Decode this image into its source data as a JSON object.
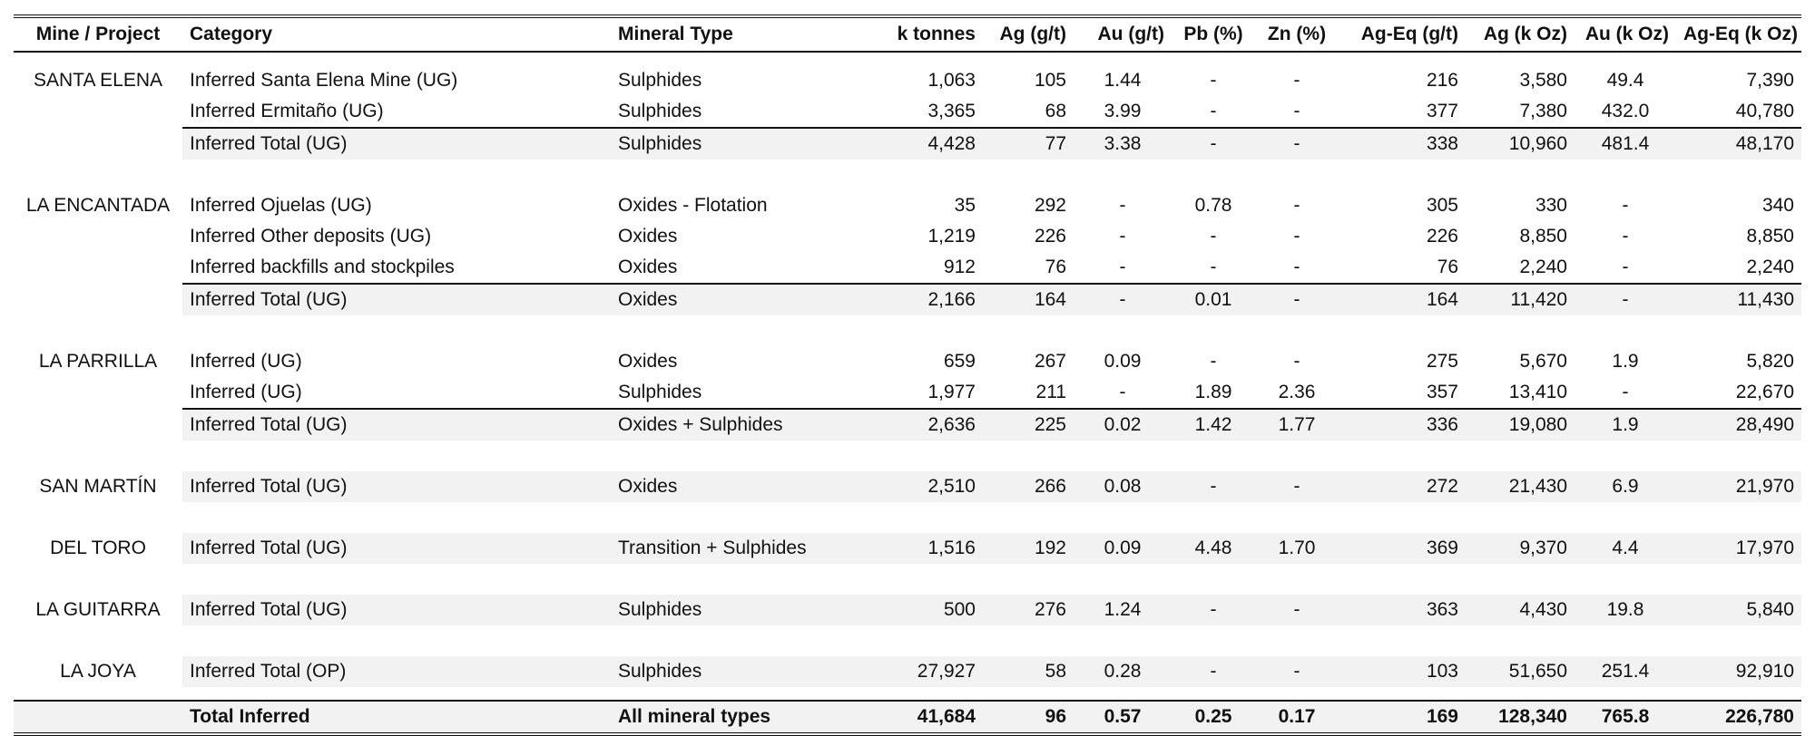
{
  "columns": [
    "Mine / Project",
    "Category",
    "Mineral Type",
    "k tonnes",
    "Ag (g/t)",
    "Au (g/t)",
    "Pb (%)",
    "Zn (%)",
    "Ag-Eq (g/t)",
    "Ag (k Oz)",
    "Au (k Oz)",
    "Ag-Eq (k Oz)"
  ],
  "rows": [
    {
      "mine": "SANTA ELENA",
      "category": "Inferred Santa Elena Mine (UG)",
      "mineral": "Sulphides",
      "ktonnes": "1,063",
      "ag_gt": "105",
      "au_gt": "1.44",
      "pb": "-",
      "zn": "-",
      "ageq_gt": "216",
      "ag_koz": "3,580",
      "au_koz": "49.4",
      "ageq_koz": "7,390"
    },
    {
      "mine": "",
      "category": "Inferred Ermitaño (UG)",
      "mineral": "Sulphides",
      "ktonnes": "3,365",
      "ag_gt": "68",
      "au_gt": "3.99",
      "pb": "-",
      "zn": "-",
      "ageq_gt": "377",
      "ag_koz": "7,380",
      "au_koz": "432.0",
      "ageq_koz": "40,780"
    },
    {
      "mine": "",
      "category": "Inferred Total (UG)",
      "mineral": "Sulphides",
      "ktonnes": "4,428",
      "ag_gt": "77",
      "au_gt": "3.38",
      "pb": "-",
      "zn": "-",
      "ageq_gt": "338",
      "ag_koz": "10,960",
      "au_koz": "481.4",
      "ageq_koz": "48,170"
    },
    {
      "mine": "LA ENCANTADA",
      "category": "Inferred Ojuelas (UG)",
      "mineral": "Oxides - Flotation",
      "ktonnes": "35",
      "ag_gt": "292",
      "au_gt": "-",
      "pb": "0.78",
      "zn": "-",
      "ageq_gt": "305",
      "ag_koz": "330",
      "au_koz": "-",
      "ageq_koz": "340"
    },
    {
      "mine": "",
      "category": "Inferred Other deposits (UG)",
      "mineral": "Oxides",
      "ktonnes": "1,219",
      "ag_gt": "226",
      "au_gt": "-",
      "pb": "-",
      "zn": "-",
      "ageq_gt": "226",
      "ag_koz": "8,850",
      "au_koz": "-",
      "ageq_koz": "8,850"
    },
    {
      "mine": "",
      "category": "Inferred backfills and stockpiles",
      "mineral": "Oxides",
      "ktonnes": "912",
      "ag_gt": "76",
      "au_gt": "-",
      "pb": "-",
      "zn": "-",
      "ageq_gt": "76",
      "ag_koz": "2,240",
      "au_koz": "-",
      "ageq_koz": "2,240"
    },
    {
      "mine": "",
      "category": "Inferred Total (UG)",
      "mineral": "Oxides",
      "ktonnes": "2,166",
      "ag_gt": "164",
      "au_gt": "-",
      "pb": "0.01",
      "zn": "-",
      "ageq_gt": "164",
      "ag_koz": "11,420",
      "au_koz": "-",
      "ageq_koz": "11,430"
    },
    {
      "mine": "LA PARRILLA",
      "category": "Inferred (UG)",
      "mineral": "Oxides",
      "ktonnes": "659",
      "ag_gt": "267",
      "au_gt": "0.09",
      "pb": "-",
      "zn": "-",
      "ageq_gt": "275",
      "ag_koz": "5,670",
      "au_koz": "1.9",
      "ageq_koz": "5,820"
    },
    {
      "mine": "",
      "category": "Inferred (UG)",
      "mineral": "Sulphides",
      "ktonnes": "1,977",
      "ag_gt": "211",
      "au_gt": "-",
      "pb": "1.89",
      "zn": "2.36",
      "ageq_gt": "357",
      "ag_koz": "13,410",
      "au_koz": "-",
      "ageq_koz": "22,670"
    },
    {
      "mine": "",
      "category": "Inferred Total (UG)",
      "mineral": "Oxides + Sulphides",
      "ktonnes": "2,636",
      "ag_gt": "225",
      "au_gt": "0.02",
      "pb": "1.42",
      "zn": "1.77",
      "ageq_gt": "336",
      "ag_koz": "19,080",
      "au_koz": "1.9",
      "ageq_koz": "28,490"
    },
    {
      "mine": "SAN MARTÍN",
      "category": "Inferred Total (UG)",
      "mineral": "Oxides",
      "ktonnes": "2,510",
      "ag_gt": "266",
      "au_gt": "0.08",
      "pb": "-",
      "zn": "-",
      "ageq_gt": "272",
      "ag_koz": "21,430",
      "au_koz": "6.9",
      "ageq_koz": "21,970"
    },
    {
      "mine": "DEL TORO",
      "category": "Inferred Total (UG)",
      "mineral": "Transition + Sulphides",
      "ktonnes": "1,516",
      "ag_gt": "192",
      "au_gt": "0.09",
      "pb": "4.48",
      "zn": "1.70",
      "ageq_gt": "369",
      "ag_koz": "9,370",
      "au_koz": "4.4",
      "ageq_koz": "17,970"
    },
    {
      "mine": "LA GUITARRA",
      "category": "Inferred Total (UG)",
      "mineral": "Sulphides",
      "ktonnes": "500",
      "ag_gt": "276",
      "au_gt": "1.24",
      "pb": "-",
      "zn": "-",
      "ageq_gt": "363",
      "ag_koz": "4,430",
      "au_koz": "19.8",
      "ageq_koz": "5,840"
    },
    {
      "mine": "LA JOYA",
      "category": "Inferred Total (OP)",
      "mineral": "Sulphides",
      "ktonnes": "27,927",
      "ag_gt": "58",
      "au_gt": "0.28",
      "pb": "-",
      "zn": "-",
      "ageq_gt": "103",
      "ag_koz": "51,650",
      "au_koz": "251.4",
      "ageq_koz": "92,910"
    }
  ],
  "grand_total": {
    "mine": "",
    "category": "Total Inferred",
    "mineral": "All mineral types",
    "ktonnes": "41,684",
    "ag_gt": "96",
    "au_gt": "0.57",
    "pb": "0.25",
    "zn": "0.17",
    "ageq_gt": "169",
    "ag_koz": "128,340",
    "au_koz": "765.8",
    "ageq_koz": "226,780"
  }
}
